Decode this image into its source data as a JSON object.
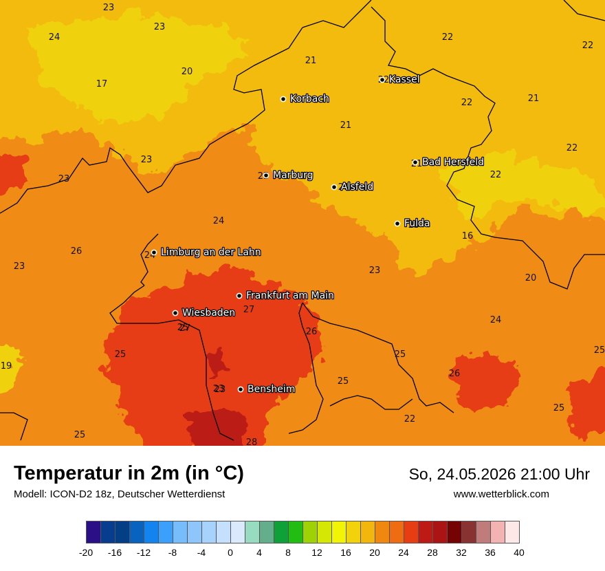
{
  "map": {
    "city_markers": [
      {
        "name": "Kassel",
        "value": "22"
      },
      {
        "name": "Korbach",
        "value": ""
      },
      {
        "name": "Bad Hersfeld",
        "value": "21"
      },
      {
        "name": "Marburg",
        "value": "23"
      },
      {
        "name": "Alsfeld",
        "value": "21"
      },
      {
        "name": "Fulda",
        "value": "23"
      },
      {
        "name": "Limburg an der Lahn",
        "value": "24"
      },
      {
        "name": "Frankfurt am Main",
        "value": "27"
      },
      {
        "name": "Wiesbaden",
        "value": "27"
      },
      {
        "name": "Bensheim",
        "value": "23"
      }
    ],
    "grid_values": [
      "23",
      "23",
      "24",
      "20",
      "17",
      "21",
      "22",
      "22",
      "22",
      "21",
      "21",
      "22",
      "23",
      "23",
      "22",
      "24",
      "16",
      "26",
      "23",
      "23",
      "20",
      "24",
      "25",
      "26",
      "26",
      "25",
      "25",
      "25",
      "25",
      "19",
      "23",
      "22",
      "28",
      "25",
      "25"
    ],
    "field_colors": {
      "t16": "#efd10c",
      "t20": "#f2bb0c",
      "t24": "#f08b13",
      "t28": "#e63e12",
      "t30": "#bb1b14"
    },
    "border_color": "#000000"
  },
  "footer": {
    "title": "Temperatur in 2m (in °C)",
    "model": "Modell: ICON-D2 18z, Deutscher Wetterdienst",
    "datetime": "So, 24.05.2026 21:00 Uhr",
    "website": "www.wetterblick.com"
  },
  "legend": {
    "ticks": [
      "-20",
      "-16",
      "-12",
      "-8",
      "-4",
      "0",
      "4",
      "8",
      "12",
      "16",
      "20",
      "24",
      "28",
      "32",
      "36",
      "40"
    ],
    "colors": [
      "#2b0f87",
      "#063d8e",
      "#043e85",
      "#0763bf",
      "#1384ef",
      "#3aa0fb",
      "#77bdfc",
      "#8ec6fb",
      "#a7d2fb",
      "#c5e0fc",
      "#dae9fc",
      "#97dcc0",
      "#65ae8b",
      "#0da137",
      "#21bd12",
      "#9ed205",
      "#d5e805",
      "#f1f404",
      "#f2d20b",
      "#f2b60d",
      "#f0880f",
      "#f06c12",
      "#e63e12",
      "#be1a15",
      "#aa1414",
      "#760303",
      "#883232",
      "#c07b7b",
      "#f4b3b3",
      "#fde7e7"
    ]
  }
}
